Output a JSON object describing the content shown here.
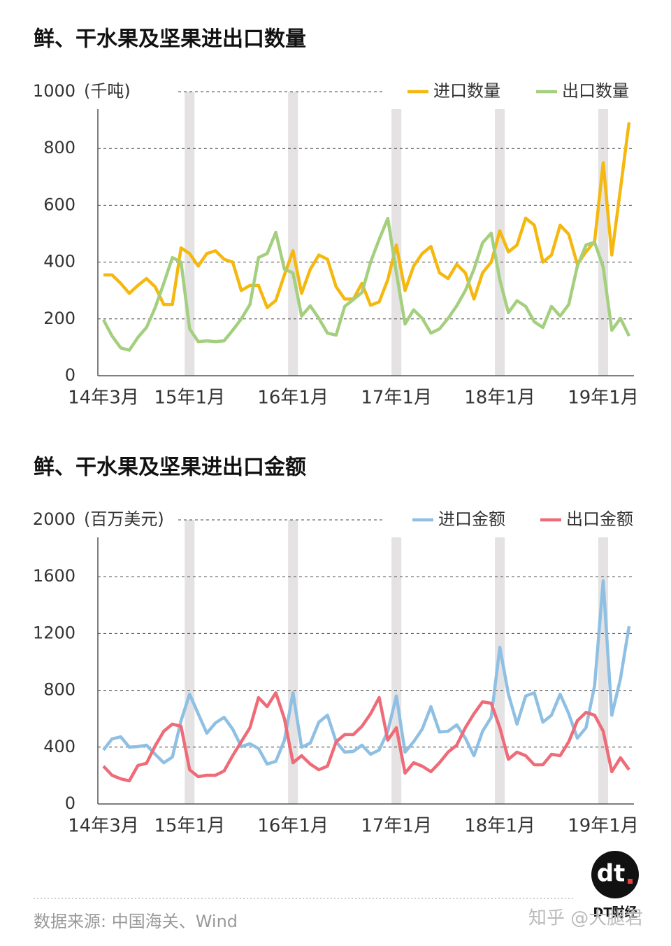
{
  "chart_data": [
    {
      "type": "line",
      "title": "鲜、干水果及坚果进出口数量",
      "y_unit": "(千吨)",
      "categories": [
        "14年3月",
        null,
        null,
        null,
        null,
        null,
        null,
        null,
        null,
        null,
        "15年1月",
        null,
        null,
        null,
        null,
        null,
        null,
        null,
        null,
        null,
        null,
        null,
        "16年1月",
        null,
        null,
        null,
        null,
        null,
        null,
        null,
        null,
        null,
        null,
        null,
        "17年1月",
        null,
        null,
        null,
        null,
        null,
        null,
        null,
        null,
        null,
        null,
        null,
        "18年1月",
        null,
        null,
        null,
        null,
        null,
        null,
        null,
        null,
        null,
        null,
        null,
        "19年1月",
        null,
        null,
        null
      ],
      "series": [
        {
          "name": "进口数量",
          "color": "#f5b80f",
          "values": [
            355,
            355,
            325,
            290,
            318,
            342,
            313,
            251,
            251,
            450,
            430,
            386,
            430,
            440,
            410,
            400,
            300,
            318,
            318,
            240,
            265,
            355,
            440,
            290,
            375,
            425,
            410,
            313,
            270,
            270,
            325,
            248,
            260,
            338,
            460,
            300,
            386,
            430,
            455,
            362,
            342,
            392,
            362,
            270,
            362,
            400,
            510,
            436,
            460,
            555,
            530,
            400,
            425,
            530,
            498,
            392,
            436,
            473,
            750,
            425,
            658,
            892
          ]
        },
        {
          "name": "出口数量",
          "color": "#a3cf7e",
          "values": [
            197,
            140,
            98,
            90,
            135,
            170,
            240,
            325,
            416,
            400,
            165,
            120,
            123,
            120,
            123,
            160,
            200,
            251,
            416,
            430,
            505,
            375,
            362,
            210,
            246,
            202,
            150,
            143,
            244,
            268,
            293,
            400,
            480,
            554,
            362,
            182,
            232,
            202,
            150,
            165,
            202,
            246,
            300,
            375,
            468,
            502,
            338,
            222,
            264,
            244,
            190,
            170,
            244,
            210,
            251,
            386,
            460,
            470,
            382,
            160,
            202,
            140
          ]
        }
      ],
      "ylim": [
        0,
        1000
      ],
      "yticks": [
        0,
        200,
        400,
        600,
        800,
        1000
      ],
      "grid": true,
      "legend": "upper right"
    },
    {
      "type": "line",
      "title": "鲜、干水果及坚果进出口金额",
      "y_unit": "(百万美元)",
      "categories": [
        "14年3月",
        null,
        null,
        null,
        null,
        null,
        null,
        null,
        null,
        null,
        "15年1月",
        null,
        null,
        null,
        null,
        null,
        null,
        null,
        null,
        null,
        null,
        null,
        "16年1月",
        null,
        null,
        null,
        null,
        null,
        null,
        null,
        null,
        null,
        null,
        null,
        "17年1月",
        null,
        null,
        null,
        null,
        null,
        null,
        null,
        null,
        null,
        null,
        null,
        "18年1月",
        null,
        null,
        null,
        null,
        null,
        null,
        null,
        null,
        null,
        null,
        null,
        "19年1月",
        null,
        null,
        null
      ],
      "series": [
        {
          "name": "进口金额",
          "color": "#8fc0e3",
          "values": [
            380,
            458,
            473,
            400,
            404,
            414,
            350,
            290,
            330,
            586,
            773,
            635,
            498,
            571,
            610,
            527,
            404,
            424,
            390,
            281,
            300,
            448,
            783,
            400,
            428,
            576,
            625,
            438,
            365,
            370,
            414,
            350,
            380,
            512,
            760,
            365,
            438,
            527,
            685,
            507,
            512,
            557,
            463,
            340,
            512,
            610,
            1103,
            773,
            562,
            760,
            783,
            576,
            625,
            773,
            635,
            463,
            537,
            833,
            1571,
            625,
            882,
            1251
          ]
        },
        {
          "name": "出口金额",
          "color": "#ee6b78",
          "values": [
            266,
            202,
            177,
            163,
            271,
            286,
            409,
            512,
            562,
            547,
            241,
            192,
            202,
            202,
            232,
            340,
            438,
            537,
            749,
            685,
            783,
            600,
            290,
            340,
            281,
            241,
            266,
            438,
            488,
            488,
            547,
            635,
            749,
            450,
            537,
            217,
            290,
            266,
            227,
            290,
            365,
            414,
            537,
            635,
            719,
            709,
            537,
            315,
            365,
            340,
            276,
            276,
            350,
            340,
            438,
            586,
            645,
            625,
            512,
            227,
            325,
            241
          ]
        }
      ],
      "ylim": [
        0,
        2000
      ],
      "yticks": [
        0,
        400,
        800,
        1200,
        1600,
        2000
      ],
      "grid": true,
      "legend": "upper right"
    }
  ],
  "footer": {
    "source": "数据来源: 中国海关、Wind",
    "logo": "dt",
    "brand": "DT财经",
    "watermark": "知乎 @大腿君"
  }
}
